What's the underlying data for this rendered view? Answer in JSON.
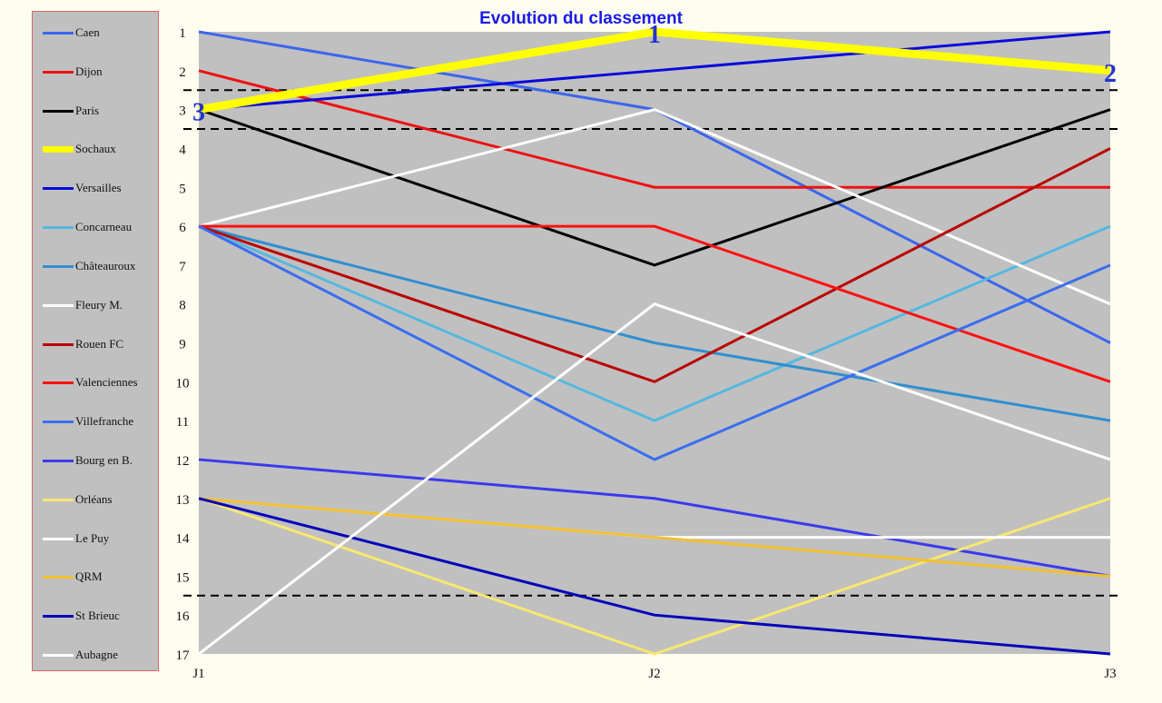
{
  "chart_data": {
    "type": "line",
    "title": "Evolution du classement",
    "categories": [
      "J1",
      "J2",
      "J3"
    ],
    "y_ticks": [
      "1",
      "2",
      "3",
      "4",
      "5",
      "6",
      "7",
      "8",
      "9",
      "10",
      "11",
      "12",
      "13",
      "14",
      "15",
      "16",
      "17"
    ],
    "ylim": [
      1,
      17
    ],
    "y_inverted": true,
    "legend_position": "left",
    "grid": false,
    "plot_background": "#c0c0c0",
    "page_background": "#fefef0",
    "reference_lines": [
      2.5,
      3.5,
      15.5
    ],
    "highlight_series": "Sochaux",
    "highlight_labels": [
      "3",
      "1",
      "2"
    ],
    "series": [
      {
        "name": "Caen",
        "values": [
          1,
          3,
          9
        ],
        "color": "#3b66ee"
      },
      {
        "name": "Dijon",
        "values": [
          2,
          5,
          5
        ],
        "color": "#ee1111"
      },
      {
        "name": "Paris",
        "values": [
          3,
          7,
          3
        ],
        "color": "#000000"
      },
      {
        "name": "Sochaux",
        "values": [
          3,
          1,
          2
        ],
        "color": "#ffff00"
      },
      {
        "name": "Versailles",
        "values": [
          3,
          2,
          1
        ],
        "color": "#0a0add"
      },
      {
        "name": "Concarneau",
        "values": [
          6,
          11,
          6
        ],
        "color": "#55b8e0"
      },
      {
        "name": "Châteauroux",
        "values": [
          6,
          9,
          11
        ],
        "color": "#2f8fd0"
      },
      {
        "name": "Fleury M.",
        "values": [
          6,
          3,
          8
        ],
        "color": "#ffffff"
      },
      {
        "name": "Rouen FC",
        "values": [
          6,
          10,
          4
        ],
        "color": "#bb0000"
      },
      {
        "name": "Valenciennes",
        "values": [
          6,
          6,
          10
        ],
        "color": "#ff1111"
      },
      {
        "name": "Villefranche",
        "values": [
          6,
          12,
          7
        ],
        "color": "#3a6ef0"
      },
      {
        "name": "Bourg en B.",
        "values": [
          12,
          13,
          15
        ],
        "color": "#3a3aee"
      },
      {
        "name": "Orléans",
        "values": [
          13,
          17,
          13
        ],
        "color": "#f7e870"
      },
      {
        "name": "Le Puy",
        "values": [
          13,
          14,
          14
        ],
        "color": "#ffffff"
      },
      {
        "name": "QRM",
        "values": [
          13,
          14,
          15
        ],
        "color": "#f2c030"
      },
      {
        "name": "St Brieuc",
        "values": [
          13,
          16,
          17
        ],
        "color": "#0505bb"
      },
      {
        "name": "Aubagne",
        "values": [
          17,
          8,
          12
        ],
        "color": "#ffffff"
      }
    ]
  }
}
